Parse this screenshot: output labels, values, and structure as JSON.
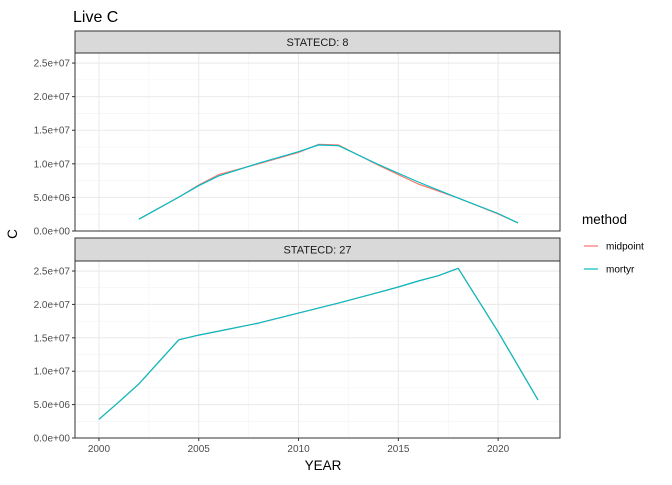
{
  "chart_data": {
    "type": "line",
    "title": "Live C",
    "xlabel": "YEAR",
    "ylabel": "C",
    "xlim": [
      1998.8,
      2023.1
    ],
    "ylim": [
      0,
      26500000
    ],
    "x_ticks": [
      2000,
      2005,
      2010,
      2015,
      2020
    ],
    "x_tick_labels": [
      "2000",
      "2005",
      "2010",
      "2015",
      "2020"
    ],
    "y_ticks": [
      0,
      5000000,
      10000000,
      15000000,
      20000000,
      25000000
    ],
    "y_tick_labels": [
      "0.0e+00",
      "5.0e+06",
      "1.0e+07",
      "1.5e+07",
      "2.0e+07",
      "2.5e+07"
    ],
    "grid": true,
    "legend_title": "method",
    "legend_position": "right",
    "legend": [
      {
        "name": "midpoint",
        "color": "#F8766D"
      },
      {
        "name": "mortyr",
        "color": "#00BFC4"
      }
    ],
    "facets": [
      {
        "strip": "STATECD: 8",
        "series": [
          {
            "name": "midpoint",
            "color": "#F8766D",
            "x": [
              2002,
              2004,
              2005,
              2006,
              2008,
              2010,
              2011,
              2012,
              2014,
              2016,
              2018,
              2020,
              2021
            ],
            "y": [
              1750000,
              5050000,
              6850000,
              8400000,
              10000000,
              11700000,
              12900000,
              12800000,
              9800000,
              7000000,
              4900000,
              2550000,
              1200000
            ]
          },
          {
            "name": "mortyr",
            "color": "#00BFC4",
            "x": [
              2002,
              2004,
              2005,
              2006,
              2008,
              2010,
              2011,
              2012,
              2014,
              2016,
              2018,
              2020,
              2021
            ],
            "y": [
              1750000,
              5050000,
              6750000,
              8200000,
              10100000,
              11800000,
              12800000,
              12700000,
              9900000,
              7300000,
              4900000,
              2600000,
              1200000
            ]
          }
        ]
      },
      {
        "strip": "STATECD: 27",
        "series": [
          {
            "name": "midpoint",
            "color": "#F8766D",
            "x": [
              2000,
              2001,
              2002,
              2004,
              2005,
              2006,
              2008,
              2010,
              2012,
              2014,
              2015,
              2016,
              2017,
              2018,
              2020,
              2022
            ],
            "y": [
              2800000,
              5400000,
              8100000,
              14700000,
              15400000,
              16000000,
              17200000,
              18700000,
              20200000,
              21800000,
              22600000,
              23500000,
              24300000,
              25400000,
              15900000,
              5700000
            ]
          },
          {
            "name": "mortyr",
            "color": "#00BFC4",
            "x": [
              2000,
              2001,
              2002,
              2004,
              2005,
              2006,
              2008,
              2010,
              2012,
              2014,
              2015,
              2016,
              2017,
              2018,
              2020,
              2022
            ],
            "y": [
              2800000,
              5400000,
              8100000,
              14700000,
              15400000,
              16000000,
              17200000,
              18700000,
              20200000,
              21800000,
              22600000,
              23500000,
              24300000,
              25400000,
              15900000,
              5700000
            ]
          }
        ]
      }
    ]
  }
}
